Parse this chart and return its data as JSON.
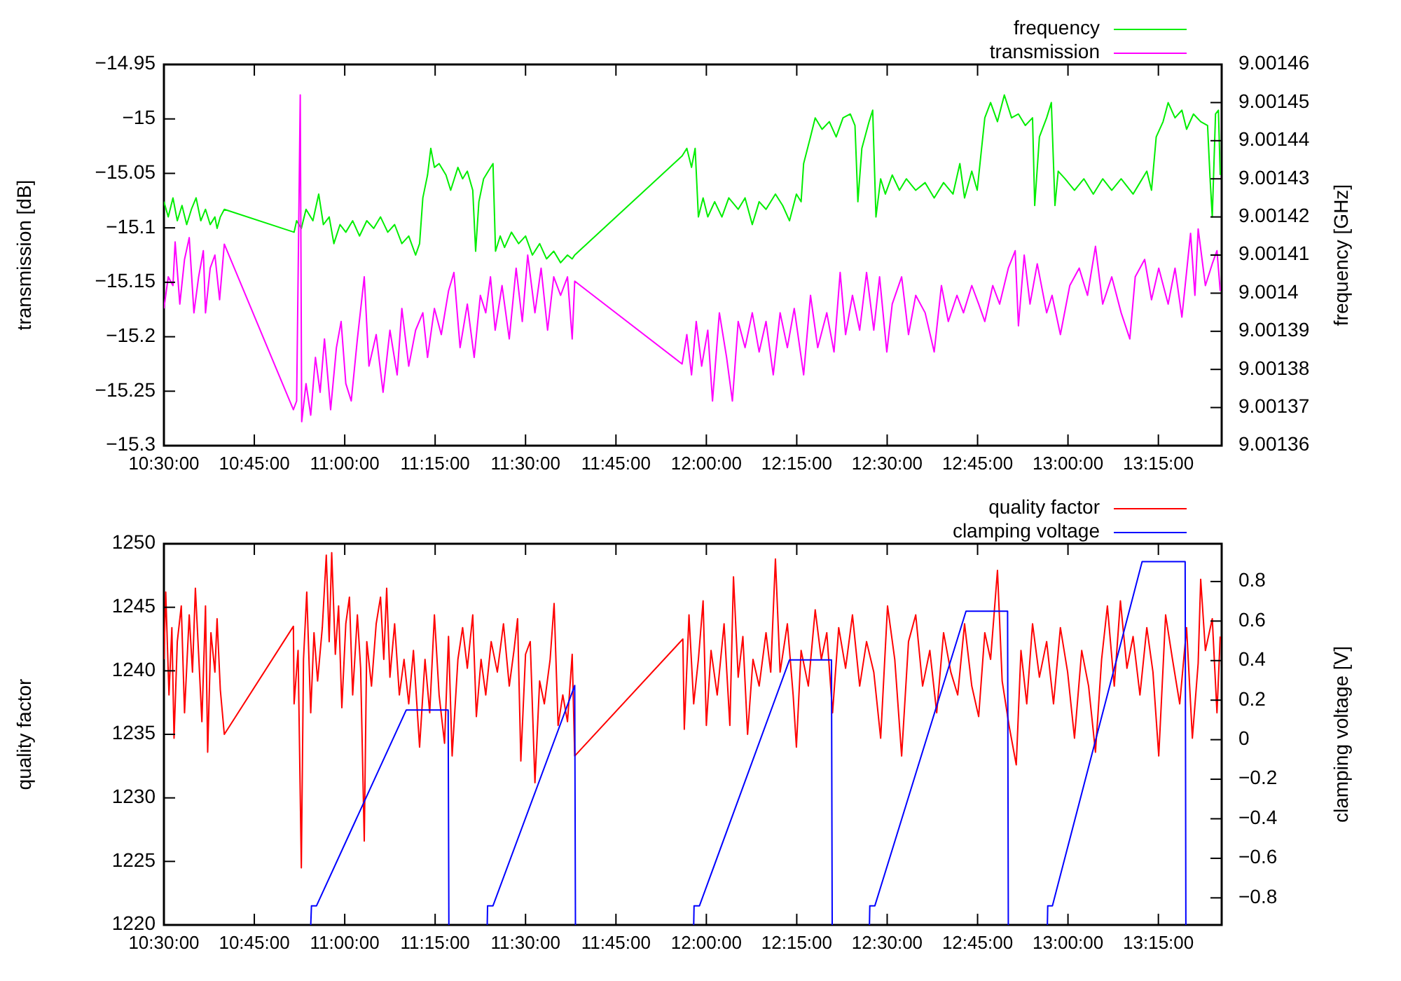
{
  "chart_data": [
    {
      "type": "line",
      "ylabel": "transmission [dB]",
      "y2label": "frequency [GHz]",
      "legend": "top right",
      "xlim": [
        10.5,
        13.425
      ],
      "xticks": [
        {
          "value": 10.5,
          "label": "10:30:00"
        },
        {
          "value": 10.75,
          "label": "10:45:00"
        },
        {
          "value": 11,
          "label": "11:00:00"
        },
        {
          "value": 11.25,
          "label": "11:15:00"
        },
        {
          "value": 11.5,
          "label": "11:30:00"
        },
        {
          "value": 11.75,
          "label": "11:45:00"
        },
        {
          "value": 12,
          "label": "12:00:00"
        },
        {
          "value": 12.25,
          "label": "12:15:00"
        },
        {
          "value": 12.5,
          "label": "12:30:00"
        },
        {
          "value": 12.75,
          "label": "12:45:00"
        },
        {
          "value": 13,
          "label": "13:00:00"
        },
        {
          "value": 13.25,
          "label": "13:15:00"
        }
      ],
      "ylim": [
        -15.3,
        -14.95
      ],
      "yticks": [
        {
          "value": -15.3,
          "label": "−15.3"
        },
        {
          "value": -15.25,
          "label": "−15.25"
        },
        {
          "value": -15.2,
          "label": "−15.2"
        },
        {
          "value": -15.15,
          "label": "−15.15"
        },
        {
          "value": -15.1,
          "label": "−15.1"
        },
        {
          "value": -15.05,
          "label": "−15.05"
        },
        {
          "value": -15,
          "label": "−15"
        },
        {
          "value": -14.95,
          "label": "−14.95"
        }
      ],
      "y2lim": [
        9.00136,
        9.00146
      ],
      "y2ticks": [
        9.00136,
        9.00137,
        9.00138,
        9.00139,
        9.0014,
        9.00141,
        9.00142,
        9.00143,
        9.00144,
        9.00145,
        9.00146
      ],
      "series": [
        {
          "name": "frequency",
          "color": "#00ee00",
          "axis": "y2",
          "x": [
            10.5,
            10.512,
            10.525,
            10.537,
            10.55,
            10.563,
            10.576,
            10.589,
            10.602,
            10.615,
            10.628,
            10.641,
            10.647,
            10.656,
            10.667,
            10.86,
            10.867,
            10.88,
            10.893,
            10.912,
            10.928,
            10.941,
            10.957,
            10.97,
            10.987,
            11.003,
            11.022,
            11.041,
            11.061,
            11.08,
            11.099,
            11.119,
            11.138,
            11.158,
            11.177,
            11.196,
            11.207,
            11.216,
            11.229,
            11.238,
            11.248,
            11.261,
            11.28,
            11.293,
            11.313,
            11.326,
            11.339,
            11.354,
            11.362,
            11.371,
            11.384,
            11.397,
            11.41,
            11.417,
            11.43,
            11.442,
            11.461,
            11.481,
            11.5,
            11.519,
            11.539,
            11.558,
            11.578,
            11.597,
            11.616,
            11.629,
            11.636,
            11.933,
            11.946,
            11.959,
            11.969,
            11.978,
            11.991,
            12.004,
            12.023,
            12.043,
            12.062,
            12.088,
            12.107,
            12.127,
            12.146,
            12.165,
            12.191,
            12.211,
            12.23,
            12.249,
            12.262,
            12.269,
            12.288,
            12.301,
            12.32,
            12.34,
            12.359,
            12.378,
            12.398,
            12.411,
            12.419,
            12.43,
            12.45,
            12.46,
            12.469,
            12.482,
            12.495,
            12.514,
            12.534,
            12.553,
            12.579,
            12.605,
            12.63,
            12.656,
            12.682,
            12.701,
            12.714,
            12.734,
            12.749,
            12.76,
            12.77,
            12.786,
            12.805,
            12.824,
            12.844,
            12.863,
            12.882,
            12.902,
            12.908,
            12.921,
            12.941,
            12.954,
            12.964,
            12.973,
            12.992,
            13.018,
            13.044,
            13.07,
            13.096,
            13.121,
            13.147,
            13.18,
            13.199,
            13.218,
            13.231,
            13.244,
            13.263,
            13.277,
            13.296,
            13.315,
            13.328,
            13.347,
            13.367,
            13.386,
            13.393,
            13.399,
            13.408,
            13.416,
            13.421
          ],
          "values": [
            9.001424,
            9.00142,
            9.001425,
            9.001419,
            9.001423,
            9.001418,
            9.001422,
            9.001425,
            9.001419,
            9.001422,
            9.001418,
            9.00142,
            9.001417,
            9.00142,
            9.001422,
            9.001416,
            9.001419,
            9.001417,
            9.001422,
            9.001419,
            9.001426,
            9.001418,
            9.00142,
            9.001413,
            9.001418,
            9.001416,
            9.001419,
            9.001415,
            9.001419,
            9.001417,
            9.00142,
            9.001416,
            9.001418,
            9.001413,
            9.001415,
            9.00141,
            9.001413,
            9.001425,
            9.001431,
            9.001438,
            9.001433,
            9.001434,
            9.001431,
            9.001427,
            9.001433,
            9.00143,
            9.001432,
            9.001427,
            9.001411,
            9.001424,
            9.00143,
            9.001432,
            9.001434,
            9.001411,
            9.001415,
            9.001412,
            9.001416,
            9.001413,
            9.001415,
            9.00141,
            9.001413,
            9.001409,
            9.001411,
            9.001408,
            9.00141,
            9.001409,
            9.00141,
            9.001436,
            9.001438,
            9.001433,
            9.001438,
            9.00142,
            9.001425,
            9.00142,
            9.001424,
            9.00142,
            9.001425,
            9.001422,
            9.001425,
            9.001418,
            9.001424,
            9.001422,
            9.001426,
            9.001423,
            9.001419,
            9.001426,
            9.001424,
            9.001434,
            9.001441,
            9.001446,
            9.001443,
            9.001445,
            9.001441,
            9.001446,
            9.001447,
            9.001444,
            9.001424,
            9.001438,
            9.001445,
            9.001448,
            9.00142,
            9.00143,
            9.001426,
            9.001431,
            9.001427,
            9.00143,
            9.001427,
            9.001429,
            9.001425,
            9.001429,
            9.001426,
            9.001434,
            9.001425,
            9.001432,
            9.001427,
            9.001437,
            9.001446,
            9.00145,
            9.001445,
            9.001452,
            9.001446,
            9.001447,
            9.001444,
            9.001446,
            9.001423,
            9.001441,
            9.001446,
            9.00145,
            9.001423,
            9.001432,
            9.00143,
            9.001427,
            9.00143,
            9.001426,
            9.00143,
            9.001427,
            9.00143,
            9.001426,
            9.001429,
            9.001432,
            9.001427,
            9.001441,
            9.001445,
            9.00145,
            9.001446,
            9.001448,
            9.001443,
            9.001447,
            9.001445,
            9.001444,
            9.00143,
            9.00142,
            9.001447,
            9.001448,
            9.001431
          ]
        },
        {
          "name": "transmission",
          "color": "#ff00ff",
          "x": [
            10.5,
            10.512,
            10.525,
            10.531,
            10.544,
            10.557,
            10.57,
            10.583,
            10.596,
            10.609,
            10.615,
            10.628,
            10.641,
            10.654,
            10.667,
            10.858,
            10.867,
            10.877,
            10.881,
            10.893,
            10.906,
            10.919,
            10.932,
            10.944,
            10.961,
            10.977,
            10.99,
            11.003,
            11.018,
            11.035,
            11.054,
            11.067,
            11.087,
            11.106,
            11.125,
            11.145,
            11.158,
            11.177,
            11.196,
            11.216,
            11.229,
            11.248,
            11.267,
            11.287,
            11.302,
            11.319,
            11.339,
            11.358,
            11.375,
            11.39,
            11.403,
            11.416,
            11.435,
            11.455,
            11.474,
            11.491,
            11.506,
            11.526,
            11.543,
            11.561,
            11.578,
            11.597,
            11.616,
            11.629,
            11.636,
            11.933,
            11.946,
            11.959,
            11.972,
            11.987,
            12.004,
            12.017,
            12.036,
            12.056,
            12.072,
            12.088,
            12.107,
            12.127,
            12.146,
            12.165,
            12.185,
            12.204,
            12.224,
            12.243,
            12.269,
            12.288,
            12.308,
            12.333,
            12.353,
            12.37,
            12.385,
            12.404,
            12.424,
            12.443,
            12.463,
            12.479,
            12.499,
            12.514,
            12.54,
            12.559,
            12.579,
            12.605,
            12.63,
            12.65,
            12.669,
            12.693,
            12.711,
            12.734,
            12.753,
            12.77,
            12.792,
            12.811,
            12.835,
            12.854,
            12.863,
            12.879,
            12.895,
            12.915,
            12.941,
            12.956,
            12.979,
            13.005,
            13.031,
            13.054,
            13.076,
            13.096,
            13.121,
            13.147,
            13.171,
            13.186,
            13.212,
            13.231,
            13.251,
            13.277,
            13.296,
            13.315,
            13.339,
            13.351,
            13.36,
            13.38,
            13.399,
            13.412,
            13.421
          ],
          "values": [
            -15.174,
            -15.145,
            -15.153,
            -15.113,
            -15.17,
            -15.129,
            -15.109,
            -15.178,
            -15.145,
            -15.121,
            -15.178,
            -15.137,
            -15.125,
            -15.166,
            -15.115,
            -15.267,
            -15.259,
            -14.978,
            -15.278,
            -15.243,
            -15.272,
            -15.219,
            -15.251,
            -15.202,
            -15.267,
            -15.21,
            -15.186,
            -15.243,
            -15.259,
            -15.202,
            -15.145,
            -15.227,
            -15.198,
            -15.251,
            -15.194,
            -15.235,
            -15.174,
            -15.227,
            -15.194,
            -15.178,
            -15.219,
            -15.174,
            -15.198,
            -15.158,
            -15.141,
            -15.21,
            -15.17,
            -15.219,
            -15.162,
            -15.178,
            -15.145,
            -15.194,
            -15.153,
            -15.202,
            -15.137,
            -15.186,
            -15.125,
            -15.178,
            -15.137,
            -15.194,
            -15.145,
            -15.162,
            -15.145,
            -15.202,
            -15.149,
            -15.225,
            -15.198,
            -15.235,
            -15.186,
            -15.227,
            -15.194,
            -15.259,
            -15.178,
            -15.219,
            -15.259,
            -15.186,
            -15.21,
            -15.178,
            -15.214,
            -15.186,
            -15.235,
            -15.178,
            -15.21,
            -15.174,
            -15.235,
            -15.162,
            -15.21,
            -15.178,
            -15.214,
            -15.141,
            -15.198,
            -15.162,
            -15.194,
            -15.141,
            -15.194,
            -15.145,
            -15.214,
            -15.17,
            -15.145,
            -15.198,
            -15.162,
            -15.178,
            -15.214,
            -15.153,
            -15.186,
            -15.162,
            -15.178,
            -15.153,
            -15.17,
            -15.186,
            -15.153,
            -15.17,
            -15.137,
            -15.121,
            -15.19,
            -15.125,
            -15.17,
            -15.133,
            -15.178,
            -15.162,
            -15.198,
            -15.153,
            -15.137,
            -15.162,
            -15.117,
            -15.17,
            -15.145,
            -15.178,
            -15.202,
            -15.145,
            -15.129,
            -15.166,
            -15.137,
            -15.17,
            -15.137,
            -15.182,
            -15.105,
            -15.162,
            -15.101,
            -15.153,
            -15.133,
            -15.121,
            -15.158
          ]
        }
      ]
    },
    {
      "type": "line",
      "ylabel": "quality factor",
      "y2label": "clamping voltage [V]",
      "legend": "top right",
      "xlim": [
        10.5,
        13.425
      ],
      "xticks": [
        {
          "value": 10.5,
          "label": "10:30:00"
        },
        {
          "value": 10.75,
          "label": "10:45:00"
        },
        {
          "value": 11,
          "label": "11:00:00"
        },
        {
          "value": 11.25,
          "label": "11:15:00"
        },
        {
          "value": 11.5,
          "label": "11:30:00"
        },
        {
          "value": 11.75,
          "label": "11:45:00"
        },
        {
          "value": 12,
          "label": "12:00:00"
        },
        {
          "value": 12.25,
          "label": "12:15:00"
        },
        {
          "value": 12.5,
          "label": "12:30:00"
        },
        {
          "value": 12.75,
          "label": "12:45:00"
        },
        {
          "value": 13,
          "label": "13:00:00"
        },
        {
          "value": 13.25,
          "label": "13:15:00"
        }
      ],
      "ylim": [
        1220,
        1250
      ],
      "yticks": [
        1220,
        1225,
        1230,
        1235,
        1240,
        1245,
        1250
      ],
      "y2lim": [
        -0.937,
        0.991
      ],
      "y2ticks": [
        {
          "value": -0.8,
          "label": "−0.8"
        },
        {
          "value": -0.6,
          "label": "−0.6"
        },
        {
          "value": -0.4,
          "label": "−0.4"
        },
        {
          "value": -0.2,
          "label": "−0.2"
        },
        0,
        0.2,
        0.4,
        0.6,
        0.8
      ],
      "series": [
        {
          "name": "quality factor",
          "color": "#ff0000",
          "x": [
            10.5,
            10.505,
            10.514,
            10.522,
            10.528,
            10.537,
            10.548,
            10.557,
            10.57,
            10.579,
            10.587,
            10.596,
            10.605,
            10.615,
            10.621,
            10.63,
            10.641,
            10.647,
            10.656,
            10.667,
            10.858,
            10.86,
            10.871,
            10.88,
            10.886,
            10.895,
            10.906,
            10.915,
            10.925,
            10.938,
            10.949,
            10.957,
            10.964,
            10.974,
            10.983,
            10.992,
            11.003,
            11.013,
            11.022,
            11.035,
            11.044,
            11.054,
            11.061,
            11.074,
            11.087,
            11.099,
            11.108,
            11.116,
            11.125,
            11.138,
            11.151,
            11.164,
            11.177,
            11.19,
            11.207,
            11.222,
            11.235,
            11.248,
            11.261,
            11.276,
            11.287,
            11.297,
            11.313,
            11.326,
            11.339,
            11.354,
            11.364,
            11.377,
            11.39,
            11.405,
            11.422,
            11.439,
            11.455,
            11.468,
            11.478,
            11.487,
            11.5,
            11.513,
            11.526,
            11.539,
            11.552,
            11.568,
            11.579,
            11.59,
            11.603,
            11.616,
            11.629,
            11.636,
            11.935,
            11.939,
            11.952,
            11.965,
            11.978,
            11.991,
            12,
            12.013,
            12.03,
            12.049,
            12.065,
            12.075,
            12.088,
            12.101,
            12.114,
            12.129,
            12.146,
            12.165,
            12.178,
            12.191,
            12.204,
            12.224,
            12.24,
            12.249,
            12.262,
            12.282,
            12.301,
            12.318,
            12.333,
            12.349,
            12.366,
            12.385,
            12.404,
            12.424,
            12.443,
            12.463,
            12.482,
            12.501,
            12.521,
            12.54,
            12.559,
            12.579,
            12.598,
            12.618,
            12.637,
            12.656,
            12.676,
            12.695,
            12.714,
            12.734,
            12.753,
            12.77,
            12.786,
            12.805,
            12.818,
            12.837,
            12.857,
            12.87,
            12.886,
            12.902,
            12.921,
            12.941,
            12.96,
            12.979,
            12.999,
            13.018,
            13.038,
            13.057,
            13.076,
            13.093,
            13.109,
            13.128,
            13.145,
            13.163,
            13.18,
            13.199,
            13.218,
            13.235,
            13.251,
            13.27,
            13.289,
            13.309,
            13.328,
            13.344,
            13.36,
            13.367,
            13.38,
            13.399,
            13.412,
            13.421
          ],
          "values": [
            1240.9,
            1246.2,
            1238.1,
            1243.4,
            1234.7,
            1242.3,
            1245.1,
            1236.7,
            1244.4,
            1239.9,
            1246.5,
            1241.3,
            1236,
            1245.1,
            1233.6,
            1243,
            1239.9,
            1244.1,
            1238.5,
            1235,
            1243.5,
            1237.4,
            1241.6,
            1224.5,
            1240.9,
            1246.2,
            1236.7,
            1243,
            1239.2,
            1243.4,
            1249.1,
            1242.3,
            1249.3,
            1241.3,
            1245.1,
            1237.1,
            1243.7,
            1245.8,
            1238.1,
            1244.4,
            1240.2,
            1226.6,
            1242.3,
            1238.8,
            1243.7,
            1245.8,
            1240.9,
            1246.5,
            1239.5,
            1243.7,
            1238.1,
            1240.9,
            1237.4,
            1241.6,
            1234,
            1240.9,
            1236.7,
            1244.4,
            1238.1,
            1234.3,
            1242.7,
            1233.3,
            1240.9,
            1243.4,
            1240.2,
            1244.4,
            1236.4,
            1240.9,
            1238.1,
            1242.3,
            1239.9,
            1243.7,
            1238.8,
            1241.6,
            1244.1,
            1232.9,
            1241.3,
            1242.3,
            1231.2,
            1239.2,
            1237.4,
            1240.9,
            1245.3,
            1235.7,
            1238.1,
            1236,
            1241.3,
            1233.3,
            1242.5,
            1235.4,
            1244.4,
            1237.4,
            1240.9,
            1245.5,
            1235.7,
            1241.6,
            1238.1,
            1243.7,
            1235.7,
            1247.4,
            1239.5,
            1242.7,
            1235,
            1240.9,
            1238.8,
            1243,
            1239.9,
            1248.8,
            1239.9,
            1243.7,
            1238.1,
            1234,
            1241.6,
            1238.8,
            1244.8,
            1240.9,
            1243,
            1236.7,
            1243.4,
            1240.2,
            1244.4,
            1238.8,
            1242.3,
            1239.9,
            1234.7,
            1245.1,
            1240.9,
            1233.3,
            1242.3,
            1244.4,
            1238.8,
            1241.6,
            1236.7,
            1243,
            1239.9,
            1238.1,
            1243.7,
            1238.8,
            1236.4,
            1243,
            1240.9,
            1247.9,
            1239.2,
            1235.7,
            1232.6,
            1241.6,
            1237.4,
            1243.7,
            1239.5,
            1242.3,
            1237.4,
            1243.4,
            1239.9,
            1234.7,
            1241.6,
            1238.8,
            1233.6,
            1240.9,
            1245.1,
            1238.8,
            1245.5,
            1240.2,
            1242.7,
            1238.1,
            1243.4,
            1239.9,
            1233.3,
            1244.4,
            1240.9,
            1237.4,
            1243.4,
            1234.7,
            1240.6,
            1247.2,
            1241.6,
            1244.1,
            1236.7,
            1242.7
          ]
        },
        {
          "name": "clamping voltage",
          "color": "#0000ff",
          "axis": "y2",
          "x": [
            10.906,
            10.908,
            10.922,
            11.17,
            11.286,
            11.288,
            11.29,
            11.394,
            11.395,
            11.41,
            11.636,
            11.638,
            11.7,
            11.965,
            11.966,
            11.981,
            12.23,
            12.346,
            12.348,
            12.4,
            12.451,
            12.452,
            12.466,
            12.718,
            12.833,
            12.835,
            12.9,
            12.943,
            12.944,
            12.957,
            13.205,
            13.324,
            13.326
          ],
          "values": [
            -0.937,
            -0.84,
            -0.84,
            0.15,
            0.15,
            -0.937,
            null,
            -0.937,
            -0.84,
            -0.84,
            0.274,
            -0.937,
            null,
            -0.937,
            -0.84,
            -0.84,
            0.404,
            0.404,
            -0.937,
            null,
            -0.937,
            -0.84,
            -0.84,
            0.65,
            0.65,
            -0.937,
            null,
            -0.937,
            -0.84,
            -0.84,
            0.901,
            0.901,
            -0.937
          ]
        }
      ]
    }
  ]
}
